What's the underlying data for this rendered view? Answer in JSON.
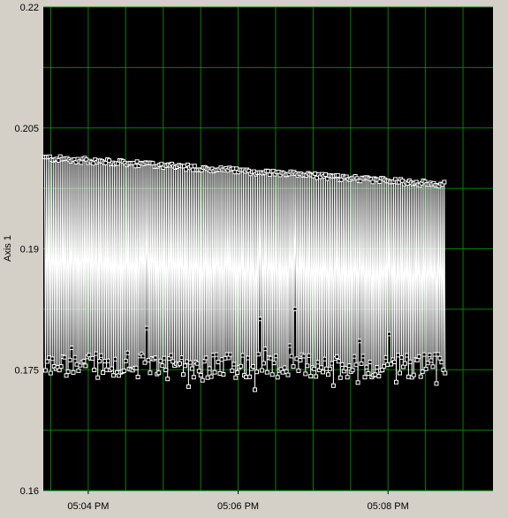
{
  "chart_data": {
    "type": "line",
    "title": "",
    "xlabel": "",
    "ylabel": "Axis 1",
    "ylim": [
      0.16,
      0.22
    ],
    "xlim_minutes": [
      63.4,
      69.4
    ],
    "y_ticks": [
      "0.22",
      "0.205",
      "0.19",
      "0.175",
      "0.16"
    ],
    "y_tick_values": [
      0.22,
      0.205,
      0.19,
      0.175,
      0.16
    ],
    "x_ticks": [
      "05:04 PM",
      "05:06 PM",
      "05:08 PM"
    ],
    "x_tick_minutes": [
      64,
      66,
      68
    ],
    "grid": true,
    "legend": "none",
    "colors": {
      "plot_background": "#000000",
      "grid": "#008000",
      "series": "#ffffff",
      "window": "#d4d0c8"
    },
    "series": [
      {
        "start_time": "05:03:25 PM",
        "end_time": "05:08:45 PM",
        "sample_count": 230,
        "pattern": "alternating high/low readings",
        "high_band": {
          "start": 0.2013,
          "end": 0.198
        },
        "low_band": {
          "min": 0.172,
          "max": 0.182,
          "typical": 0.1755
        }
      }
    ]
  }
}
